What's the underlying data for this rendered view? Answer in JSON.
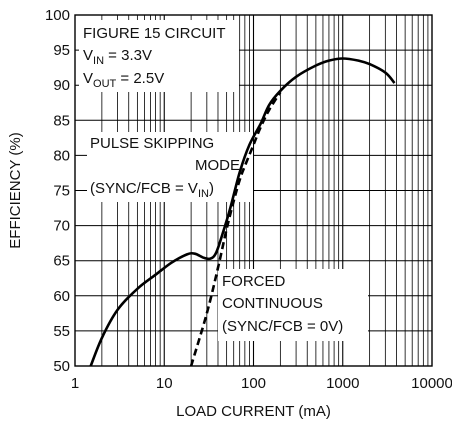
{
  "chart_data": {
    "type": "line",
    "title": "",
    "xlabel": "LOAD CURRENT (mA)",
    "ylabel": "EFFICIENCY (%)",
    "x_scale": "log",
    "xlim": [
      1,
      10000
    ],
    "ylim": [
      50,
      100
    ],
    "grid": true,
    "x_ticks": [
      "1",
      "10",
      "100",
      "1000",
      "10000"
    ],
    "y_ticks": [
      "50",
      "55",
      "60",
      "65",
      "70",
      "75",
      "80",
      "85",
      "90",
      "95",
      "100"
    ],
    "annotations": {
      "circuit": {
        "line1": "FIGURE 15 CIRCUIT",
        "vin_main": "V",
        "vin_sub": "IN",
        "vin_value": " = 3.3V",
        "vout_main": "V",
        "vout_sub": "OUT",
        "vout_value": " = 2.5V"
      },
      "pulse": {
        "line1": "PULSE SKIPPING",
        "line2": "MODE",
        "line3_pre": "(SYNC/FCB = V",
        "line3_sub": "IN",
        "line3_post": ")"
      },
      "forced": {
        "line1": "FORCED",
        "line2": "CONTINUOUS",
        "line3": "(SYNC/FCB = 0V)"
      }
    },
    "series": [
      {
        "style": "solid",
        "x": [
          1.5,
          2,
          3,
          5,
          8,
          12,
          18,
          22,
          28,
          33,
          38,
          45,
          55,
          70,
          90,
          120,
          150,
          200,
          300,
          500,
          700,
          1000,
          1500,
          2000,
          3000,
          3800
        ],
        "y": [
          50,
          54,
          58,
          61,
          63,
          64.7,
          65.9,
          66,
          65.4,
          65.3,
          66.1,
          68.8,
          72.5,
          77.6,
          81.5,
          84.5,
          87.2,
          89.2,
          91.2,
          92.8,
          93.5,
          93.8,
          93.5,
          93,
          91.8,
          90.3
        ]
      },
      {
        "style": "dashed",
        "x": [
          20,
          30,
          40,
          50,
          60,
          70,
          80,
          100,
          120,
          150,
          200
        ],
        "y": [
          50,
          57.5,
          64,
          69.5,
          73.5,
          76.5,
          78.5,
          81.5,
          84,
          86.5,
          89
        ]
      }
    ]
  }
}
